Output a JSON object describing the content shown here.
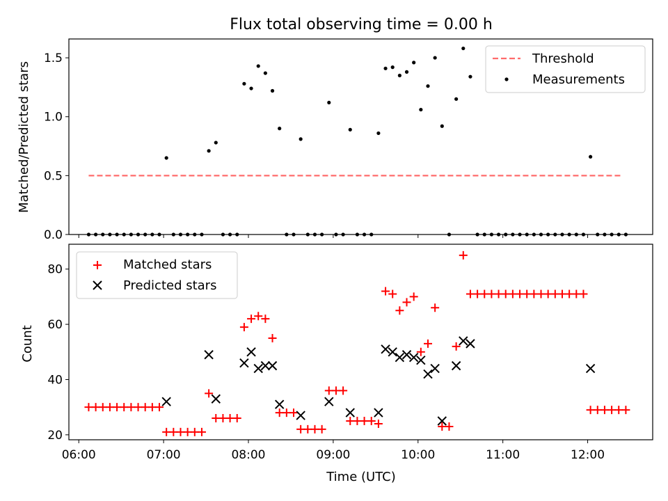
{
  "title": "Flux total observing time = 0.00 h",
  "chart_data": {
    "type": "scatter",
    "xlabel": "Time (UTC)",
    "x_ticks": [
      "06:00",
      "07:00",
      "08:00",
      "09:00",
      "10:00",
      "11:00",
      "12:00"
    ],
    "xlim": [
      "05:53",
      "12:46"
    ],
    "top": {
      "ylabel": "Matched/Predicted stars",
      "ylim": [
        0,
        1.66
      ],
      "y_ticks": [
        "0.0",
        "0.5",
        "1.0",
        "1.5"
      ],
      "legend_position": "top-right",
      "threshold": {
        "name": "Threshold",
        "value": 0.5,
        "x_start": "06:07",
        "x_end": "12:25",
        "color": "#ff6b6b"
      },
      "measurements": {
        "name": "Measurements",
        "color": "#000000",
        "points": [
          [
            "06:07",
            0
          ],
          [
            "06:12",
            0
          ],
          [
            "06:17",
            0
          ],
          [
            "06:22",
            0
          ],
          [
            "06:27",
            0
          ],
          [
            "06:32",
            0
          ],
          [
            "06:37",
            0
          ],
          [
            "06:42",
            0
          ],
          [
            "06:47",
            0
          ],
          [
            "06:52",
            0
          ],
          [
            "06:57",
            0
          ],
          [
            "07:02",
            0.65
          ],
          [
            "07:07",
            0
          ],
          [
            "07:12",
            0
          ],
          [
            "07:17",
            0
          ],
          [
            "07:22",
            0
          ],
          [
            "07:27",
            0
          ],
          [
            "07:32",
            0.71
          ],
          [
            "07:37",
            0.78
          ],
          [
            "07:42",
            0
          ],
          [
            "07:47",
            0
          ],
          [
            "07:52",
            0
          ],
          [
            "07:57",
            1.28
          ],
          [
            "08:02",
            1.24
          ],
          [
            "08:07",
            1.43
          ],
          [
            "08:12",
            1.37
          ],
          [
            "08:17",
            1.22
          ],
          [
            "08:22",
            0.9
          ],
          [
            "08:27",
            0
          ],
          [
            "08:32",
            0
          ],
          [
            "08:37",
            0.81
          ],
          [
            "08:42",
            0
          ],
          [
            "08:47",
            0
          ],
          [
            "08:52",
            0
          ],
          [
            "08:57",
            1.12
          ],
          [
            "09:02",
            0
          ],
          [
            "09:07",
            0
          ],
          [
            "09:12",
            0.89
          ],
          [
            "09:17",
            0
          ],
          [
            "09:22",
            0
          ],
          [
            "09:27",
            0
          ],
          [
            "09:32",
            0.86
          ],
          [
            "09:37",
            1.41
          ],
          [
            "09:42",
            1.42
          ],
          [
            "09:47",
            1.35
          ],
          [
            "09:52",
            1.38
          ],
          [
            "09:57",
            1.46
          ],
          [
            "10:02",
            1.06
          ],
          [
            "10:07",
            1.26
          ],
          [
            "10:12",
            1.5
          ],
          [
            "10:17",
            0.92
          ],
          [
            "10:22",
            0
          ],
          [
            "10:27",
            1.15
          ],
          [
            "10:32",
            1.58
          ],
          [
            "10:37",
            1.34
          ],
          [
            "10:42",
            0
          ],
          [
            "10:47",
            0
          ],
          [
            "10:52",
            0
          ],
          [
            "10:57",
            0
          ],
          [
            "11:02",
            0
          ],
          [
            "11:07",
            0
          ],
          [
            "11:12",
            0
          ],
          [
            "11:17",
            0
          ],
          [
            "11:22",
            0
          ],
          [
            "11:27",
            0
          ],
          [
            "11:32",
            0
          ],
          [
            "11:37",
            0
          ],
          [
            "11:42",
            0
          ],
          [
            "11:47",
            0
          ],
          [
            "11:52",
            0
          ],
          [
            "11:57",
            0
          ],
          [
            "12:02",
            0.66
          ],
          [
            "12:07",
            0
          ],
          [
            "12:12",
            0
          ],
          [
            "12:17",
            0
          ],
          [
            "12:22",
            0
          ],
          [
            "12:27",
            0
          ]
        ]
      }
    },
    "bottom": {
      "ylabel": "Count",
      "ylim": [
        18.2,
        89
      ],
      "y_ticks": [
        "20",
        "40",
        "60",
        "80"
      ],
      "legend_position": "top-left",
      "matched": {
        "name": "Matched stars",
        "color": "#ff0000",
        "points": [
          [
            "06:07",
            30
          ],
          [
            "06:12",
            30
          ],
          [
            "06:17",
            30
          ],
          [
            "06:22",
            30
          ],
          [
            "06:27",
            30
          ],
          [
            "06:32",
            30
          ],
          [
            "06:37",
            30
          ],
          [
            "06:42",
            30
          ],
          [
            "06:47",
            30
          ],
          [
            "06:52",
            30
          ],
          [
            "06:57",
            30
          ],
          [
            "07:02",
            21
          ],
          [
            "07:07",
            21
          ],
          [
            "07:12",
            21
          ],
          [
            "07:17",
            21
          ],
          [
            "07:22",
            21
          ],
          [
            "07:27",
            21
          ],
          [
            "07:32",
            35
          ],
          [
            "07:37",
            26
          ],
          [
            "07:42",
            26
          ],
          [
            "07:47",
            26
          ],
          [
            "07:52",
            26
          ],
          [
            "07:57",
            59
          ],
          [
            "08:02",
            62
          ],
          [
            "08:07",
            63
          ],
          [
            "08:12",
            62
          ],
          [
            "08:17",
            55
          ],
          [
            "08:22",
            28
          ],
          [
            "08:27",
            28
          ],
          [
            "08:32",
            28
          ],
          [
            "08:37",
            22
          ],
          [
            "08:42",
            22
          ],
          [
            "08:47",
            22
          ],
          [
            "08:52",
            22
          ],
          [
            "08:57",
            36
          ],
          [
            "09:02",
            36
          ],
          [
            "09:07",
            36
          ],
          [
            "09:12",
            25
          ],
          [
            "09:17",
            25
          ],
          [
            "09:22",
            25
          ],
          [
            "09:27",
            25
          ],
          [
            "09:32",
            24
          ],
          [
            "09:37",
            72
          ],
          [
            "09:42",
            71
          ],
          [
            "09:47",
            65
          ],
          [
            "09:52",
            68
          ],
          [
            "09:57",
            70
          ],
          [
            "10:02",
            50
          ],
          [
            "10:07",
            53
          ],
          [
            "10:12",
            66
          ],
          [
            "10:17",
            23
          ],
          [
            "10:22",
            23
          ],
          [
            "10:27",
            52
          ],
          [
            "10:32",
            85
          ],
          [
            "10:37",
            71
          ],
          [
            "10:42",
            71
          ],
          [
            "10:47",
            71
          ],
          [
            "10:52",
            71
          ],
          [
            "10:57",
            71
          ],
          [
            "11:02",
            71
          ],
          [
            "11:07",
            71
          ],
          [
            "11:12",
            71
          ],
          [
            "11:17",
            71
          ],
          [
            "11:22",
            71
          ],
          [
            "11:27",
            71
          ],
          [
            "11:32",
            71
          ],
          [
            "11:37",
            71
          ],
          [
            "11:42",
            71
          ],
          [
            "11:47",
            71
          ],
          [
            "11:52",
            71
          ],
          [
            "11:57",
            71
          ],
          [
            "12:02",
            29
          ],
          [
            "12:07",
            29
          ],
          [
            "12:12",
            29
          ],
          [
            "12:17",
            29
          ],
          [
            "12:22",
            29
          ],
          [
            "12:27",
            29
          ]
        ]
      },
      "predicted": {
        "name": "Predicted stars",
        "color": "#000000",
        "points": [
          [
            "07:02",
            32
          ],
          [
            "07:32",
            49
          ],
          [
            "07:37",
            33
          ],
          [
            "07:57",
            46
          ],
          [
            "08:02",
            50
          ],
          [
            "08:07",
            44
          ],
          [
            "08:12",
            45
          ],
          [
            "08:17",
            45
          ],
          [
            "08:22",
            31
          ],
          [
            "08:37",
            27
          ],
          [
            "08:57",
            32
          ],
          [
            "09:12",
            28
          ],
          [
            "09:32",
            28
          ],
          [
            "09:37",
            51
          ],
          [
            "09:42",
            50
          ],
          [
            "09:47",
            48
          ],
          [
            "09:52",
            49
          ],
          [
            "09:57",
            48
          ],
          [
            "10:02",
            47
          ],
          [
            "10:07",
            42
          ],
          [
            "10:12",
            44
          ],
          [
            "10:17",
            25
          ],
          [
            "10:27",
            45
          ],
          [
            "10:32",
            54
          ],
          [
            "10:37",
            53
          ],
          [
            "12:02",
            44
          ]
        ]
      }
    }
  }
}
